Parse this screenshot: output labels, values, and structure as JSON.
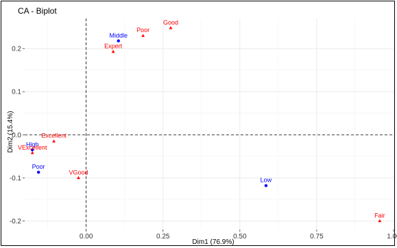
{
  "chart_data": {
    "type": "scatter",
    "title": "CA - Biplot",
    "xlabel": "Dim1 (76.9%)",
    "ylabel": "Dim2 (15.4%)",
    "xlim": [
      -0.2,
      1.0
    ],
    "ylim": [
      -0.22,
      0.27
    ],
    "x_ticks": [
      0.0,
      0.25,
      0.5,
      0.75,
      1.0
    ],
    "x_tick_labels": [
      "0.00",
      "0.25",
      "0.50",
      "0.75",
      "1.00"
    ],
    "y_ticks": [
      -0.2,
      -0.1,
      0.0,
      0.1,
      0.2
    ],
    "y_tick_labels": [
      "-0.2",
      "-0.1",
      "0.0",
      "0.1",
      "0.2"
    ],
    "grid": true,
    "reference_lines": {
      "x": 0,
      "y": 0
    },
    "series": [
      {
        "marker": "circle",
        "color": "#0000ff",
        "points": [
          {
            "label": "Middle",
            "x": 0.105,
            "y": 0.218
          },
          {
            "label": "High",
            "x": -0.175,
            "y": -0.035
          },
          {
            "label": "Poor",
            "x": -0.155,
            "y": -0.087
          },
          {
            "label": "Low",
            "x": 0.585,
            "y": -0.118
          }
        ]
      },
      {
        "marker": "triangle",
        "color": "#ff0000",
        "points": [
          {
            "label": "Good",
            "x": 0.275,
            "y": 0.248
          },
          {
            "label": "Poor",
            "x": 0.185,
            "y": 0.23
          },
          {
            "label": "Expert",
            "x": 0.088,
            "y": 0.193
          },
          {
            "label": "Excellent",
            "x": -0.105,
            "y": -0.015
          },
          {
            "label": "VExcellent",
            "x": -0.175,
            "y": -0.042
          },
          {
            "label": "VGood",
            "x": -0.025,
            "y": -0.1
          },
          {
            "label": "Fair",
            "x": 0.955,
            "y": -0.2
          }
        ]
      }
    ]
  }
}
